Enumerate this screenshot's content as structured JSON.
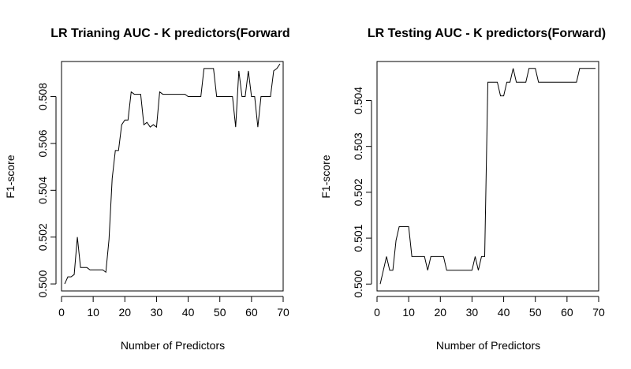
{
  "chart_data": [
    {
      "type": "line",
      "title": "LR Trianing AUC - K predictors(Forward",
      "xlabel": "Number of Predictors",
      "ylabel": "F1-score",
      "xlim": [
        0,
        70
      ],
      "ylim": [
        0.4997,
        0.5095
      ],
      "xticks": [
        0,
        10,
        20,
        30,
        40,
        50,
        60,
        70
      ],
      "yticks": [
        0.5,
        0.502,
        0.504,
        0.506,
        0.508
      ],
      "ytick_labels": [
        "0.500",
        "0.502",
        "0.504",
        "0.506",
        "0.508"
      ],
      "grid": false,
      "series": [
        {
          "x": [
            1,
            2,
            3,
            4,
            5,
            6,
            7,
            8,
            9,
            10,
            11,
            12,
            13,
            14,
            15,
            16,
            17,
            18,
            19,
            20,
            21,
            22,
            23,
            24,
            25,
            26,
            27,
            28,
            29,
            30,
            31,
            32,
            33,
            34,
            35,
            36,
            37,
            38,
            39,
            40,
            41,
            42,
            43,
            44,
            45,
            46,
            47,
            48,
            49,
            50,
            51,
            52,
            53,
            54,
            55,
            56,
            57,
            58,
            59,
            60,
            61,
            62,
            63,
            64,
            65,
            66,
            67,
            68,
            69
          ],
          "y": [
            0.5,
            0.5003,
            0.5003,
            0.5004,
            0.502,
            0.5007,
            0.5007,
            0.5007,
            0.5006,
            0.5006,
            0.5006,
            0.5006,
            0.5006,
            0.5005,
            0.5019,
            0.5045,
            0.5057,
            0.5057,
            0.5068,
            0.507,
            0.507,
            0.5082,
            0.5081,
            0.5081,
            0.5081,
            0.5068,
            0.5069,
            0.5067,
            0.5068,
            0.5067,
            0.5082,
            0.5081,
            0.5081,
            0.5081,
            0.5081,
            0.5081,
            0.5081,
            0.5081,
            0.5081,
            0.508,
            0.508,
            0.508,
            0.508,
            0.508,
            0.5092,
            0.5092,
            0.5092,
            0.5092,
            0.508,
            0.508,
            0.508,
            0.508,
            0.508,
            0.508,
            0.5067,
            0.5091,
            0.508,
            0.508,
            0.5091,
            0.508,
            0.508,
            0.5067,
            0.508,
            0.508,
            0.508,
            0.508,
            0.5091,
            0.5092,
            0.5094
          ]
        }
      ]
    },
    {
      "type": "line",
      "title": "LR Testing AUC - K predictors(Forward)",
      "xlabel": "Number of Predictors",
      "ylabel": "F1-score",
      "xlim": [
        0,
        70
      ],
      "ylim": [
        0.49985,
        0.50485
      ],
      "xticks": [
        0,
        10,
        20,
        30,
        40,
        50,
        60,
        70
      ],
      "yticks": [
        0.5,
        0.501,
        0.502,
        0.503,
        0.504
      ],
      "ytick_labels": [
        "0.500",
        "0.501",
        "0.502",
        "0.503",
        "0.504"
      ],
      "grid": false,
      "series": [
        {
          "x": [
            1,
            2,
            3,
            4,
            5,
            6,
            7,
            8,
            9,
            10,
            11,
            12,
            13,
            14,
            15,
            16,
            17,
            18,
            19,
            20,
            21,
            22,
            23,
            24,
            25,
            26,
            27,
            28,
            29,
            30,
            31,
            32,
            33,
            34,
            35,
            36,
            37,
            38,
            39,
            40,
            41,
            42,
            43,
            44,
            45,
            46,
            47,
            48,
            49,
            50,
            51,
            52,
            53,
            54,
            55,
            56,
            57,
            58,
            59,
            60,
            61,
            62,
            63,
            64,
            65,
            66,
            67,
            68,
            69
          ],
          "y": [
            0.5,
            0.5003,
            0.5006,
            0.5003,
            0.5003,
            0.50095,
            0.50125,
            0.50125,
            0.50125,
            0.50125,
            0.5006,
            0.5006,
            0.5006,
            0.5006,
            0.5006,
            0.5003,
            0.5006,
            0.5006,
            0.5006,
            0.5006,
            0.5006,
            0.5003,
            0.5003,
            0.5003,
            0.5003,
            0.5003,
            0.5003,
            0.5003,
            0.5003,
            0.5003,
            0.5006,
            0.5003,
            0.5006,
            0.5006,
            0.5044,
            0.5044,
            0.5044,
            0.5044,
            0.5041,
            0.5041,
            0.5044,
            0.5044,
            0.5047,
            0.5044,
            0.5044,
            0.5044,
            0.5044,
            0.5047,
            0.5047,
            0.5047,
            0.5044,
            0.5044,
            0.5044,
            0.5044,
            0.5044,
            0.5044,
            0.5044,
            0.5044,
            0.5044,
            0.5044,
            0.5044,
            0.5044,
            0.5044,
            0.5047,
            0.5047,
            0.5047,
            0.5047,
            0.5047,
            0.5047
          ]
        }
      ]
    }
  ]
}
